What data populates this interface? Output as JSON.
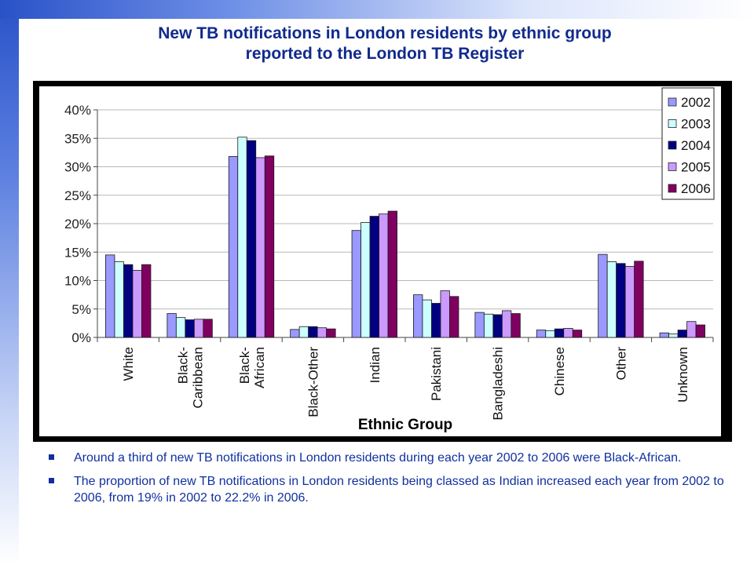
{
  "slide": {
    "title_line1": "New TB notifications in London residents by ethnic group",
    "title_line2": "reported to the London TB Register",
    "bullets": [
      "Around a third of new TB notifications in London residents during each year 2002 to 2006 were Black-African.",
      " The proportion of new TB notifications in London residents being classed as Indian increased each year from 2002 to 2006, from 19% in 2002 to 22.2% in 2006."
    ]
  },
  "chart_data": {
    "type": "bar",
    "xlabel": "Ethnic Group",
    "ylabel": "",
    "ylim": [
      0,
      40
    ],
    "yticks": [
      "0%",
      "5%",
      "10%",
      "15%",
      "20%",
      "25%",
      "30%",
      "35%",
      "40%"
    ],
    "categories": [
      "White",
      "Black-Caribbean",
      "Black-African",
      "Black-Other",
      "Indian",
      "Pakistani",
      "Bangladeshi",
      "Chinese",
      "Other",
      "Unknown"
    ],
    "category_lines": [
      [
        "White"
      ],
      [
        "Black-",
        "Caribbean"
      ],
      [
        "Black-",
        "African"
      ],
      [
        "Black-Other"
      ],
      [
        "Indian"
      ],
      [
        "Pakistani"
      ],
      [
        "Bangladeshi"
      ],
      [
        "Chinese"
      ],
      [
        "Other"
      ],
      [
        "Unknown"
      ]
    ],
    "legend_position": "top-right",
    "grid": true,
    "series": [
      {
        "name": "2002",
        "color": "#9999ff",
        "values": [
          14.5,
          4.2,
          31.8,
          1.4,
          18.8,
          7.5,
          4.4,
          1.3,
          14.6,
          0.8
        ]
      },
      {
        "name": "2003",
        "color": "#ccffff",
        "values": [
          13.3,
          3.5,
          35.2,
          1.9,
          20.2,
          6.6,
          4.1,
          1.2,
          13.3,
          0.6
        ]
      },
      {
        "name": "2004",
        "color": "#000080",
        "values": [
          12.8,
          3.1,
          34.6,
          1.9,
          21.3,
          6.0,
          4.0,
          1.5,
          13.0,
          1.3
        ]
      },
      {
        "name": "2005",
        "color": "#cc99ff",
        "values": [
          11.8,
          3.2,
          31.6,
          1.7,
          21.7,
          8.2,
          4.7,
          1.6,
          12.5,
          2.8
        ]
      },
      {
        "name": "2006",
        "color": "#800060",
        "values": [
          12.8,
          3.2,
          31.9,
          1.5,
          22.2,
          7.2,
          4.2,
          1.3,
          13.4,
          2.2
        ]
      }
    ]
  }
}
